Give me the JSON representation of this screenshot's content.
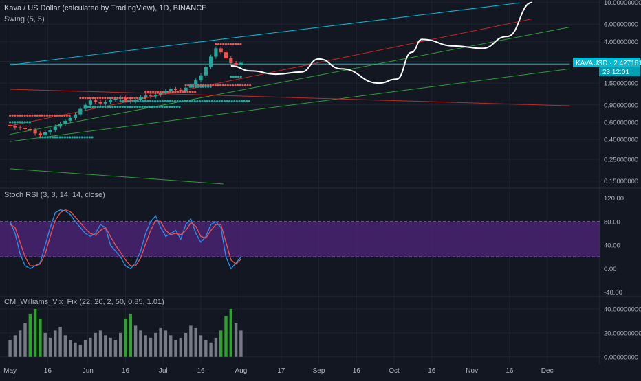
{
  "header": {
    "title": "Kava / US Dollar (calculated by TradingView), 1D, BINANCE",
    "indicator": "Swing (5, 5)"
  },
  "price_tag": {
    "symbol_value": "KAVAUSD · 2.42716116",
    "countdown": "23:12:01"
  },
  "colors": {
    "background": "#131722",
    "grid": "#1f2331",
    "text": "#b2b5be",
    "up_candle": "#26a69a",
    "down_candle": "#ef5350",
    "rsi_k": "#2196f3",
    "rsi_d": "#ef5350",
    "rsi_band": "#4a2372",
    "vix_high": "#2ea12e",
    "vix_normal": "#787b86",
    "cyan_line": "#00bcd4",
    "red_line": "#c62828",
    "green_line": "#2e9e3a",
    "drawing": "#ffffff"
  },
  "chart_data": [
    {
      "type": "line",
      "name": "price",
      "scale": "log",
      "title": "Kava / US Dollar (calculated by TradingView), 1D, BINANCE",
      "x_tick_labels": [
        "May",
        "16",
        "Jun",
        "16",
        "Jul",
        "16",
        "Aug",
        "17",
        "Sep",
        "16",
        "Oct",
        "16",
        "Nov",
        "16",
        "Dec"
      ],
      "y_tick_labels": [
        "10.00000000",
        "6.00000000",
        "4.00000000",
        "2.50000000",
        "1.50000000",
        "0.90000000",
        "0.60000000",
        "0.40000000",
        "0.25000000",
        "0.15000000"
      ],
      "y_ticks": [
        10,
        6,
        4,
        2.5,
        1.5,
        0.9,
        0.6,
        0.4,
        0.25,
        0.15
      ],
      "ylim": [
        0.14,
        10.6
      ],
      "last_price": 2.42716116,
      "x": [
        "2020-05-01",
        "2020-05-03",
        "2020-05-05",
        "2020-05-07",
        "2020-05-09",
        "2020-05-11",
        "2020-05-13",
        "2020-05-15",
        "2020-05-17",
        "2020-05-19",
        "2020-05-21",
        "2020-05-23",
        "2020-05-25",
        "2020-05-27",
        "2020-05-29",
        "2020-05-31",
        "2020-06-02",
        "2020-06-04",
        "2020-06-06",
        "2020-06-08",
        "2020-06-10",
        "2020-06-12",
        "2020-06-14",
        "2020-06-16",
        "2020-06-18",
        "2020-06-20",
        "2020-06-22",
        "2020-06-24",
        "2020-06-26",
        "2020-06-28",
        "2020-06-30",
        "2020-07-02",
        "2020-07-04",
        "2020-07-06",
        "2020-07-08",
        "2020-07-10",
        "2020-07-12",
        "2020-07-14",
        "2020-07-16",
        "2020-07-18",
        "2020-07-20",
        "2020-07-22",
        "2020-07-24",
        "2020-07-26",
        "2020-07-28",
        "2020-07-30",
        "2020-08-01"
      ],
      "close": [
        0.55,
        0.53,
        0.52,
        0.51,
        0.5,
        0.46,
        0.44,
        0.47,
        0.5,
        0.54,
        0.58,
        0.62,
        0.66,
        0.72,
        0.82,
        0.9,
        1.0,
        0.97,
        0.93,
        0.96,
        1.02,
        1.04,
        1.06,
        1.0,
        0.98,
        1.02,
        1.08,
        1.12,
        1.1,
        1.14,
        1.2,
        1.25,
        1.3,
        1.28,
        1.26,
        1.35,
        1.45,
        1.6,
        1.8,
        2.2,
        2.8,
        3.4,
        3.1,
        2.7,
        2.4,
        2.3,
        2.42
      ],
      "series": [
        {
          "name": "Swing (5, 5) high",
          "color": "#ef5350",
          "segments": [
            {
              "start": "2020-05-01",
              "end": "2020-05-25",
              "value": 0.7
            },
            {
              "start": "2020-05-29",
              "end": "2020-06-24",
              "value": 1.06
            },
            {
              "start": "2020-06-24",
              "end": "2020-07-14",
              "value": 1.22
            },
            {
              "start": "2020-07-10",
              "end": "2020-08-05",
              "value": 1.42
            },
            {
              "start": "2020-07-22",
              "end": "2020-08-01",
              "value": 3.75
            }
          ]
        },
        {
          "name": "Swing (5, 5) low",
          "color": "#26a69a",
          "segments": [
            {
              "start": "2020-05-01",
              "end": "2020-05-09",
              "value": 0.6
            },
            {
              "start": "2020-05-13",
              "end": "2020-06-03",
              "value": 0.42
            },
            {
              "start": "2020-06-01",
              "end": "2020-07-08",
              "value": 0.86
            },
            {
              "start": "2020-06-14",
              "end": "2020-08-05",
              "value": 0.98
            },
            {
              "start": "2020-07-12",
              "end": "2020-07-20",
              "value": 1.38
            },
            {
              "start": "2020-07-28",
              "end": "2020-08-01",
              "value": 1.75
            }
          ]
        }
      ],
      "trendlines": [
        {
          "color": "#00bcd4",
          "points": [
            [
              "2020-05-01",
              2.3
            ],
            [
              "2020-11-20",
              9.9
            ]
          ]
        },
        {
          "color": "#c62828",
          "points": [
            [
              "2020-05-01",
              0.55
            ],
            [
              "2020-11-25",
              6.8
            ]
          ]
        },
        {
          "color": "#2e9e3a",
          "points": [
            [
              "2020-05-01",
              0.45
            ],
            [
              "2020-12-10",
              5.6
            ]
          ]
        },
        {
          "color": "#2e9e3a",
          "points": [
            [
              "2020-05-01",
              0.38
            ],
            [
              "2020-12-10",
              2.1
            ]
          ]
        },
        {
          "color": "#c62828",
          "points": [
            [
              "2020-05-01",
              1.3
            ],
            [
              "2020-12-10",
              0.88
            ]
          ]
        },
        {
          "color": "#2e9e3a",
          "points": [
            [
              "2020-05-01",
              0.2
            ],
            [
              "2020-07-25",
              0.14
            ]
          ]
        },
        {
          "color": "#00bcd4",
          "points": [
            [
              "2020-05-01",
              2.35
            ],
            [
              "2020-12-10",
              2.35
            ]
          ]
        }
      ],
      "projection": {
        "color": "#ffffff",
        "points": [
          [
            "2020-07-28",
            2.25
          ],
          [
            "2020-08-05",
            2.0
          ],
          [
            "2020-08-15",
            1.85
          ],
          [
            "2020-08-25",
            1.95
          ],
          [
            "2020-09-01",
            2.65
          ],
          [
            "2020-09-10",
            2.1
          ],
          [
            "2020-09-25",
            1.5
          ],
          [
            "2020-10-02",
            1.65
          ],
          [
            "2020-10-08",
            3.1
          ],
          [
            "2020-10-12",
            4.2
          ],
          [
            "2020-10-25",
            3.6
          ],
          [
            "2020-11-05",
            3.4
          ],
          [
            "2020-11-15",
            4.5
          ],
          [
            "2020-11-25",
            10.0
          ]
        ]
      }
    },
    {
      "type": "line",
      "name": "stoch-rsi",
      "title": "Stoch RSI (3, 3, 14, 14, close)",
      "x_tick_labels": [],
      "y_tick_labels": [
        "120.00",
        "80.00",
        "40.00",
        "0.00",
        "-40.00"
      ],
      "y_ticks": [
        120,
        80,
        40,
        0,
        -40
      ],
      "ylim": [
        -45,
        130
      ],
      "band": [
        20,
        80
      ],
      "x": [
        "2020-05-01",
        "2020-05-03",
        "2020-05-05",
        "2020-05-07",
        "2020-05-09",
        "2020-05-11",
        "2020-05-13",
        "2020-05-15",
        "2020-05-17",
        "2020-05-19",
        "2020-05-21",
        "2020-05-23",
        "2020-05-25",
        "2020-05-27",
        "2020-05-29",
        "2020-05-31",
        "2020-06-02",
        "2020-06-04",
        "2020-06-06",
        "2020-06-08",
        "2020-06-10",
        "2020-06-12",
        "2020-06-14",
        "2020-06-16",
        "2020-06-18",
        "2020-06-20",
        "2020-06-22",
        "2020-06-24",
        "2020-06-26",
        "2020-06-28",
        "2020-06-30",
        "2020-07-02",
        "2020-07-04",
        "2020-07-06",
        "2020-07-08",
        "2020-07-10",
        "2020-07-12",
        "2020-07-14",
        "2020-07-16",
        "2020-07-18",
        "2020-07-20",
        "2020-07-22",
        "2020-07-24",
        "2020-07-26",
        "2020-07-28",
        "2020-07-30",
        "2020-08-01"
      ],
      "series": [
        {
          "name": "K",
          "color": "#2196f3",
          "values": [
            80,
            60,
            25,
            5,
            0,
            5,
            10,
            40,
            70,
            95,
            100,
            98,
            92,
            80,
            70,
            60,
            55,
            60,
            75,
            70,
            40,
            30,
            20,
            5,
            0,
            10,
            30,
            60,
            80,
            90,
            70,
            55,
            60,
            65,
            50,
            75,
            85,
            60,
            45,
            55,
            75,
            80,
            70,
            20,
            0,
            10,
            20
          ]
        },
        {
          "name": "D",
          "color": "#ef5350",
          "values": [
            75,
            70,
            45,
            20,
            5,
            5,
            8,
            25,
            55,
            82,
            95,
            100,
            97,
            88,
            78,
            68,
            60,
            57,
            65,
            70,
            55,
            40,
            28,
            15,
            5,
            5,
            18,
            42,
            65,
            82,
            80,
            65,
            58,
            60,
            58,
            65,
            78,
            72,
            55,
            52,
            65,
            75,
            75,
            45,
            15,
            8,
            16
          ]
        }
      ]
    },
    {
      "type": "bar",
      "name": "cm-williams-vix-fix",
      "title": "CM_Williams_Vix_Fix (22, 20, 2, 50, 0.85, 1.01)",
      "x_tick_labels": [],
      "y_tick_labels": [
        "40.00000000",
        "20.00000000",
        "0.00000000"
      ],
      "y_ticks": [
        40,
        20,
        0
      ],
      "ylim": [
        -3,
        48
      ],
      "x": [
        "2020-05-01",
        "2020-05-03",
        "2020-05-05",
        "2020-05-07",
        "2020-05-09",
        "2020-05-11",
        "2020-05-13",
        "2020-05-15",
        "2020-05-17",
        "2020-05-19",
        "2020-05-21",
        "2020-05-23",
        "2020-05-25",
        "2020-05-27",
        "2020-05-29",
        "2020-05-31",
        "2020-06-02",
        "2020-06-04",
        "2020-06-06",
        "2020-06-08",
        "2020-06-10",
        "2020-06-12",
        "2020-06-14",
        "2020-06-16",
        "2020-06-18",
        "2020-06-20",
        "2020-06-22",
        "2020-06-24",
        "2020-06-26",
        "2020-06-28",
        "2020-06-30",
        "2020-07-02",
        "2020-07-04",
        "2020-07-06",
        "2020-07-08",
        "2020-07-10",
        "2020-07-12",
        "2020-07-14",
        "2020-07-16",
        "2020-07-18",
        "2020-07-20",
        "2020-07-22",
        "2020-07-24",
        "2020-07-26",
        "2020-07-28",
        "2020-07-30",
        "2020-08-01"
      ],
      "values": [
        14,
        18,
        22,
        28,
        36,
        40,
        32,
        20,
        16,
        22,
        25,
        18,
        14,
        12,
        10,
        14,
        16,
        20,
        22,
        18,
        16,
        14,
        20,
        32,
        36,
        26,
        22,
        18,
        16,
        20,
        24,
        22,
        18,
        14,
        16,
        20,
        26,
        24,
        18,
        14,
        12,
        16,
        22,
        34,
        40,
        28,
        22
      ],
      "colors": [
        "#787b86",
        "#787b86",
        "#787b86",
        "#787b86",
        "#2ea12e",
        "#2ea12e",
        "#2ea12e",
        "#787b86",
        "#787b86",
        "#787b86",
        "#787b86",
        "#787b86",
        "#787b86",
        "#787b86",
        "#787b86",
        "#787b86",
        "#787b86",
        "#787b86",
        "#787b86",
        "#787b86",
        "#787b86",
        "#787b86",
        "#787b86",
        "#2ea12e",
        "#2ea12e",
        "#787b86",
        "#787b86",
        "#787b86",
        "#787b86",
        "#787b86",
        "#787b86",
        "#787b86",
        "#787b86",
        "#787b86",
        "#787b86",
        "#787b86",
        "#787b86",
        "#787b86",
        "#787b86",
        "#787b86",
        "#787b86",
        "#787b86",
        "#2ea12e",
        "#2ea12e",
        "#2ea12e",
        "#787b86",
        "#787b86"
      ]
    }
  ]
}
